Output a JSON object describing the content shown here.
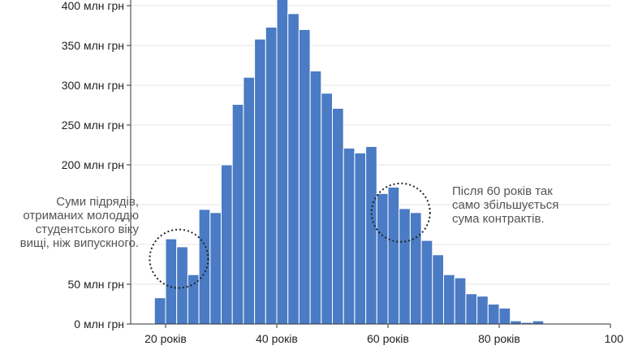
{
  "chart_data": {
    "type": "bar",
    "x": [
      17,
      19,
      21,
      23,
      25,
      27,
      29,
      31,
      33,
      35,
      37,
      39,
      41,
      43,
      45,
      47,
      49,
      51,
      53,
      55,
      57,
      59,
      61,
      63,
      65,
      67,
      69,
      71,
      73,
      75,
      77,
      79,
      81,
      83,
      85,
      87
    ],
    "values": [
      1,
      33,
      107,
      97,
      62,
      144,
      140,
      200,
      276,
      310,
      358,
      373,
      413,
      390,
      370,
      318,
      290,
      271,
      221,
      215,
      223,
      164,
      172,
      145,
      140,
      105,
      87,
      62,
      58,
      38,
      35,
      25,
      20,
      4,
      2,
      4
    ],
    "xlim": [
      10,
      100
    ],
    "ylim": [
      0,
      413
    ],
    "x_ticks": [
      20,
      40,
      60,
      80,
      100
    ],
    "x_tick_labels": [
      "20 років",
      "40 років",
      "60 років",
      "80 років",
      "100"
    ],
    "y_ticks": [
      0,
      50,
      200,
      250,
      300,
      350,
      400
    ],
    "y_tick_labels": [
      "0 млн грн",
      "50 млн грн",
      "200 млн грн",
      "250 млн грн",
      "300 млн грн",
      "350 млн грн",
      "400 млн грн"
    ],
    "grid": true,
    "title": "",
    "xlabel": "",
    "ylabel": "",
    "colors": {
      "bar": "#4a7bc4",
      "bar_edge": "#ffffff",
      "grid": "#e6e6e6",
      "axis": "#333333",
      "annotation": "#555555",
      "circle": "#222222"
    }
  },
  "annotations": {
    "left": "Суми підрядів,\nотриманих молоддю\nстудентського віку\nвищі, ніж випускного.",
    "right": "Після 60 років так\nсамо збільшується\nсума контрактів."
  }
}
